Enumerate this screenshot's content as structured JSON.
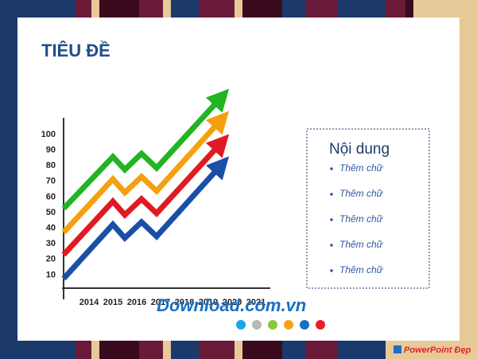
{
  "header": {
    "title": "TIÊU ĐỀ"
  },
  "chart": {
    "y_labels": [
      100,
      90,
      80,
      70,
      60,
      50,
      40,
      30,
      20,
      10
    ],
    "x_labels": [
      2014,
      2015,
      2016,
      2017,
      2018,
      2019,
      2020,
      2021
    ]
  },
  "content_box": {
    "heading": "Nội dung",
    "items": [
      "Thêm chữ",
      "Thêm chữ",
      "Thêm chữ",
      "Thêm chữ",
      "Thêm chữ"
    ]
  },
  "watermark": {
    "text": "Download.com.vn"
  },
  "logo": {
    "text": "PowerPoint Đẹp"
  }
}
